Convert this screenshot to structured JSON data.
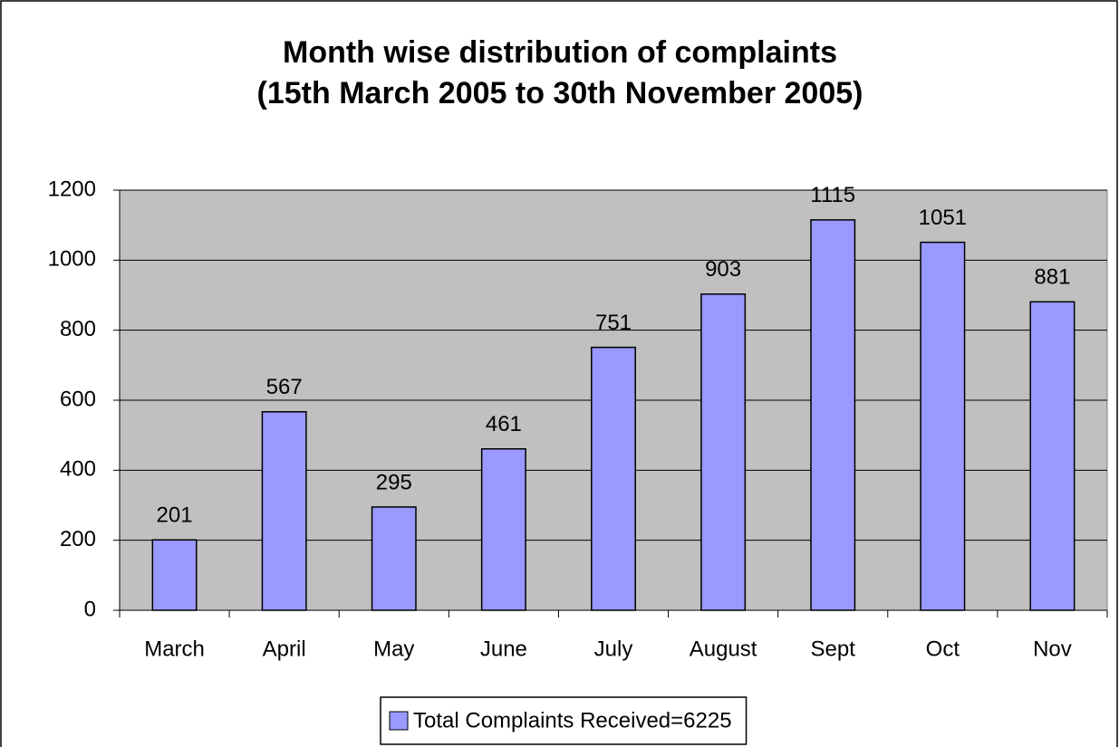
{
  "chart_data": {
    "type": "bar",
    "title": "Month wise distribution of complaints",
    "subtitle": "(15th March 2005 to 30th November 2005)",
    "categories": [
      "March",
      "April",
      "May",
      "June",
      "July",
      "August",
      "Sept",
      "Oct",
      "Nov"
    ],
    "series": [
      {
        "name": "Total Complaints Received=6225",
        "color": "#9999ff",
        "values": [
          201,
          567,
          295,
          461,
          751,
          903,
          1115,
          1051,
          881
        ]
      }
    ],
    "ylim": [
      0,
      1200
    ],
    "yticks": [
      0,
      200,
      400,
      600,
      800,
      1000,
      1200
    ],
    "grid": true,
    "legend": "bottom"
  }
}
